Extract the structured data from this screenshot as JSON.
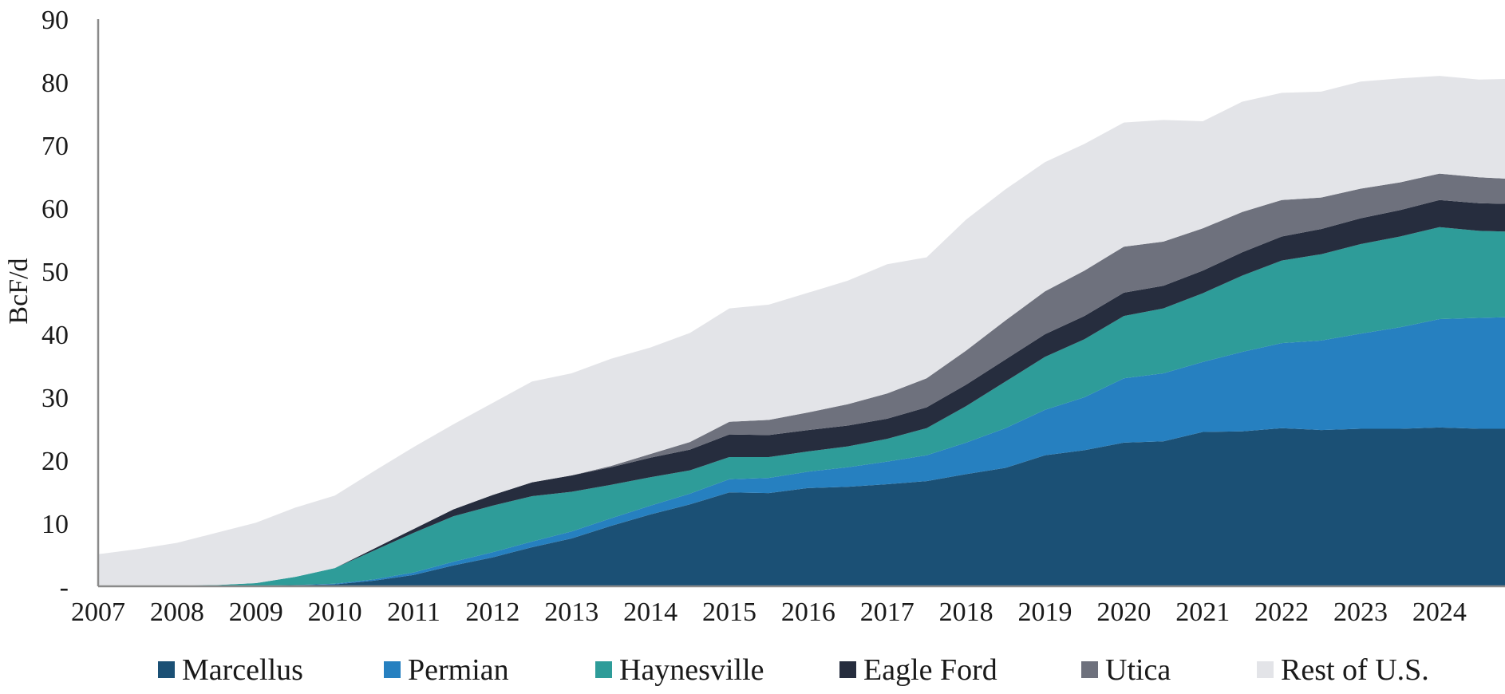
{
  "chart_data": {
    "type": "area",
    "stacked": true,
    "title": "",
    "xlabel": "",
    "ylabel": "BcF/d",
    "ylim": [
      0,
      90
    ],
    "xlim": [
      2007,
      2024.83
    ],
    "y_ticks": [
      {
        "value": 0,
        "label": "-"
      },
      {
        "value": 10,
        "label": "10"
      },
      {
        "value": 20,
        "label": "20"
      },
      {
        "value": 30,
        "label": "30"
      },
      {
        "value": 40,
        "label": "40"
      },
      {
        "value": 50,
        "label": "50"
      },
      {
        "value": 60,
        "label": "60"
      },
      {
        "value": 70,
        "label": "70"
      },
      {
        "value": 80,
        "label": "80"
      },
      {
        "value": 90,
        "label": "90"
      }
    ],
    "x_ticks": [
      {
        "value": 2007,
        "label": "2007"
      },
      {
        "value": 2008,
        "label": "2008"
      },
      {
        "value": 2009,
        "label": "2009"
      },
      {
        "value": 2010,
        "label": "2010"
      },
      {
        "value": 2011,
        "label": "2011"
      },
      {
        "value": 2012,
        "label": "2012"
      },
      {
        "value": 2013,
        "label": "2013"
      },
      {
        "value": 2014,
        "label": "2014"
      },
      {
        "value": 2015,
        "label": "2015"
      },
      {
        "value": 2016,
        "label": "2016"
      },
      {
        "value": 2017,
        "label": "2017"
      },
      {
        "value": 2018,
        "label": "2018"
      },
      {
        "value": 2019,
        "label": "2019"
      },
      {
        "value": 2020,
        "label": "2020"
      },
      {
        "value": 2021,
        "label": "2021"
      },
      {
        "value": 2022,
        "label": "2022"
      },
      {
        "value": 2023,
        "label": "2023"
      },
      {
        "value": 2024,
        "label": "2024"
      }
    ],
    "x": [
      2007,
      2007.5,
      2008,
      2008.5,
      2009,
      2009.5,
      2010,
      2010.5,
      2011,
      2011.5,
      2012,
      2012.5,
      2013,
      2013.5,
      2014,
      2014.5,
      2015,
      2015.5,
      2016,
      2016.5,
      2017,
      2017.5,
      2018,
      2018.5,
      2019,
      2019.5,
      2020,
      2020.5,
      2021,
      2021.5,
      2022,
      2022.5,
      2023,
      2023.5,
      2024,
      2024.5,
      2024.83
    ],
    "series": [
      {
        "name": "Marcellus",
        "color": "#1b5075",
        "values": [
          0.1,
          0.1,
          0.1,
          0.1,
          0.1,
          0.2,
          0.3,
          0.9,
          1.8,
          3.3,
          4.6,
          6.2,
          7.6,
          9.6,
          11.4,
          13.0,
          14.9,
          14.8,
          15.6,
          15.8,
          16.2,
          16.7,
          17.8,
          18.8,
          20.8,
          21.6,
          22.8,
          23.0,
          24.5,
          24.6,
          25.1,
          24.8,
          25.0,
          25.0,
          25.2,
          25.0,
          25.0
        ]
      },
      {
        "name": "Permian",
        "color": "#2680c0",
        "values": [
          0.0,
          0.0,
          0.0,
          0.0,
          0.0,
          0.0,
          0.1,
          0.2,
          0.4,
          0.6,
          0.8,
          0.9,
          1.1,
          1.2,
          1.4,
          1.7,
          2.1,
          2.4,
          2.6,
          3.1,
          3.6,
          4.1,
          5.0,
          6.3,
          7.2,
          8.4,
          10.2,
          10.8,
          11.1,
          12.6,
          13.5,
          14.2,
          15.1,
          16.1,
          17.2,
          17.6,
          17.7
        ]
      },
      {
        "name": "Haynesville",
        "color": "#2e9c99",
        "values": [
          0.0,
          0.0,
          0.0,
          0.1,
          0.4,
          1.3,
          2.5,
          4.6,
          6.3,
          7.2,
          7.4,
          7.2,
          6.3,
          5.3,
          4.5,
          3.7,
          3.5,
          3.3,
          3.2,
          3.3,
          3.6,
          4.3,
          5.8,
          7.4,
          8.4,
          9.2,
          9.9,
          10.3,
          10.9,
          12.1,
          13.1,
          13.7,
          14.2,
          14.4,
          14.6,
          13.8,
          13.6
        ]
      },
      {
        "name": "Eagle Ford",
        "color": "#262d3e",
        "values": [
          0.0,
          0.0,
          0.0,
          0.0,
          0.0,
          0.0,
          0.0,
          0.3,
          0.6,
          1.1,
          1.7,
          2.2,
          2.6,
          2.8,
          3.1,
          3.3,
          3.6,
          3.5,
          3.4,
          3.3,
          3.2,
          3.3,
          3.4,
          3.5,
          3.6,
          3.7,
          3.7,
          3.6,
          3.6,
          3.7,
          3.8,
          4.0,
          4.1,
          4.2,
          4.3,
          4.4,
          4.4
        ]
      },
      {
        "name": "Utica",
        "color": "#6e717d",
        "values": [
          0.0,
          0.0,
          0.0,
          0.0,
          0.0,
          0.0,
          0.0,
          0.0,
          0.0,
          0.0,
          0.0,
          0.0,
          0.0,
          0.2,
          0.6,
          1.2,
          2.0,
          2.4,
          2.8,
          3.4,
          4.0,
          4.6,
          5.4,
          6.2,
          6.8,
          7.2,
          7.3,
          7.0,
          6.7,
          6.4,
          5.8,
          5.0,
          4.7,
          4.4,
          4.2,
          4.1,
          4.0
        ]
      },
      {
        "name": "Rest of U.S.",
        "color": "#e3e4e8",
        "values": [
          5.0,
          5.8,
          6.8,
          8.3,
          9.6,
          11.0,
          11.5,
          12.3,
          13.0,
          13.5,
          14.6,
          16.0,
          16.2,
          17.0,
          16.9,
          17.3,
          18.0,
          18.3,
          19.0,
          19.6,
          20.5,
          19.2,
          20.8,
          20.8,
          20.5,
          20.1,
          19.7,
          19.3,
          17.0,
          17.5,
          17.0,
          16.8,
          17.0,
          16.5,
          15.5,
          15.5,
          15.8
        ]
      }
    ],
    "legend_position": "bottom"
  }
}
